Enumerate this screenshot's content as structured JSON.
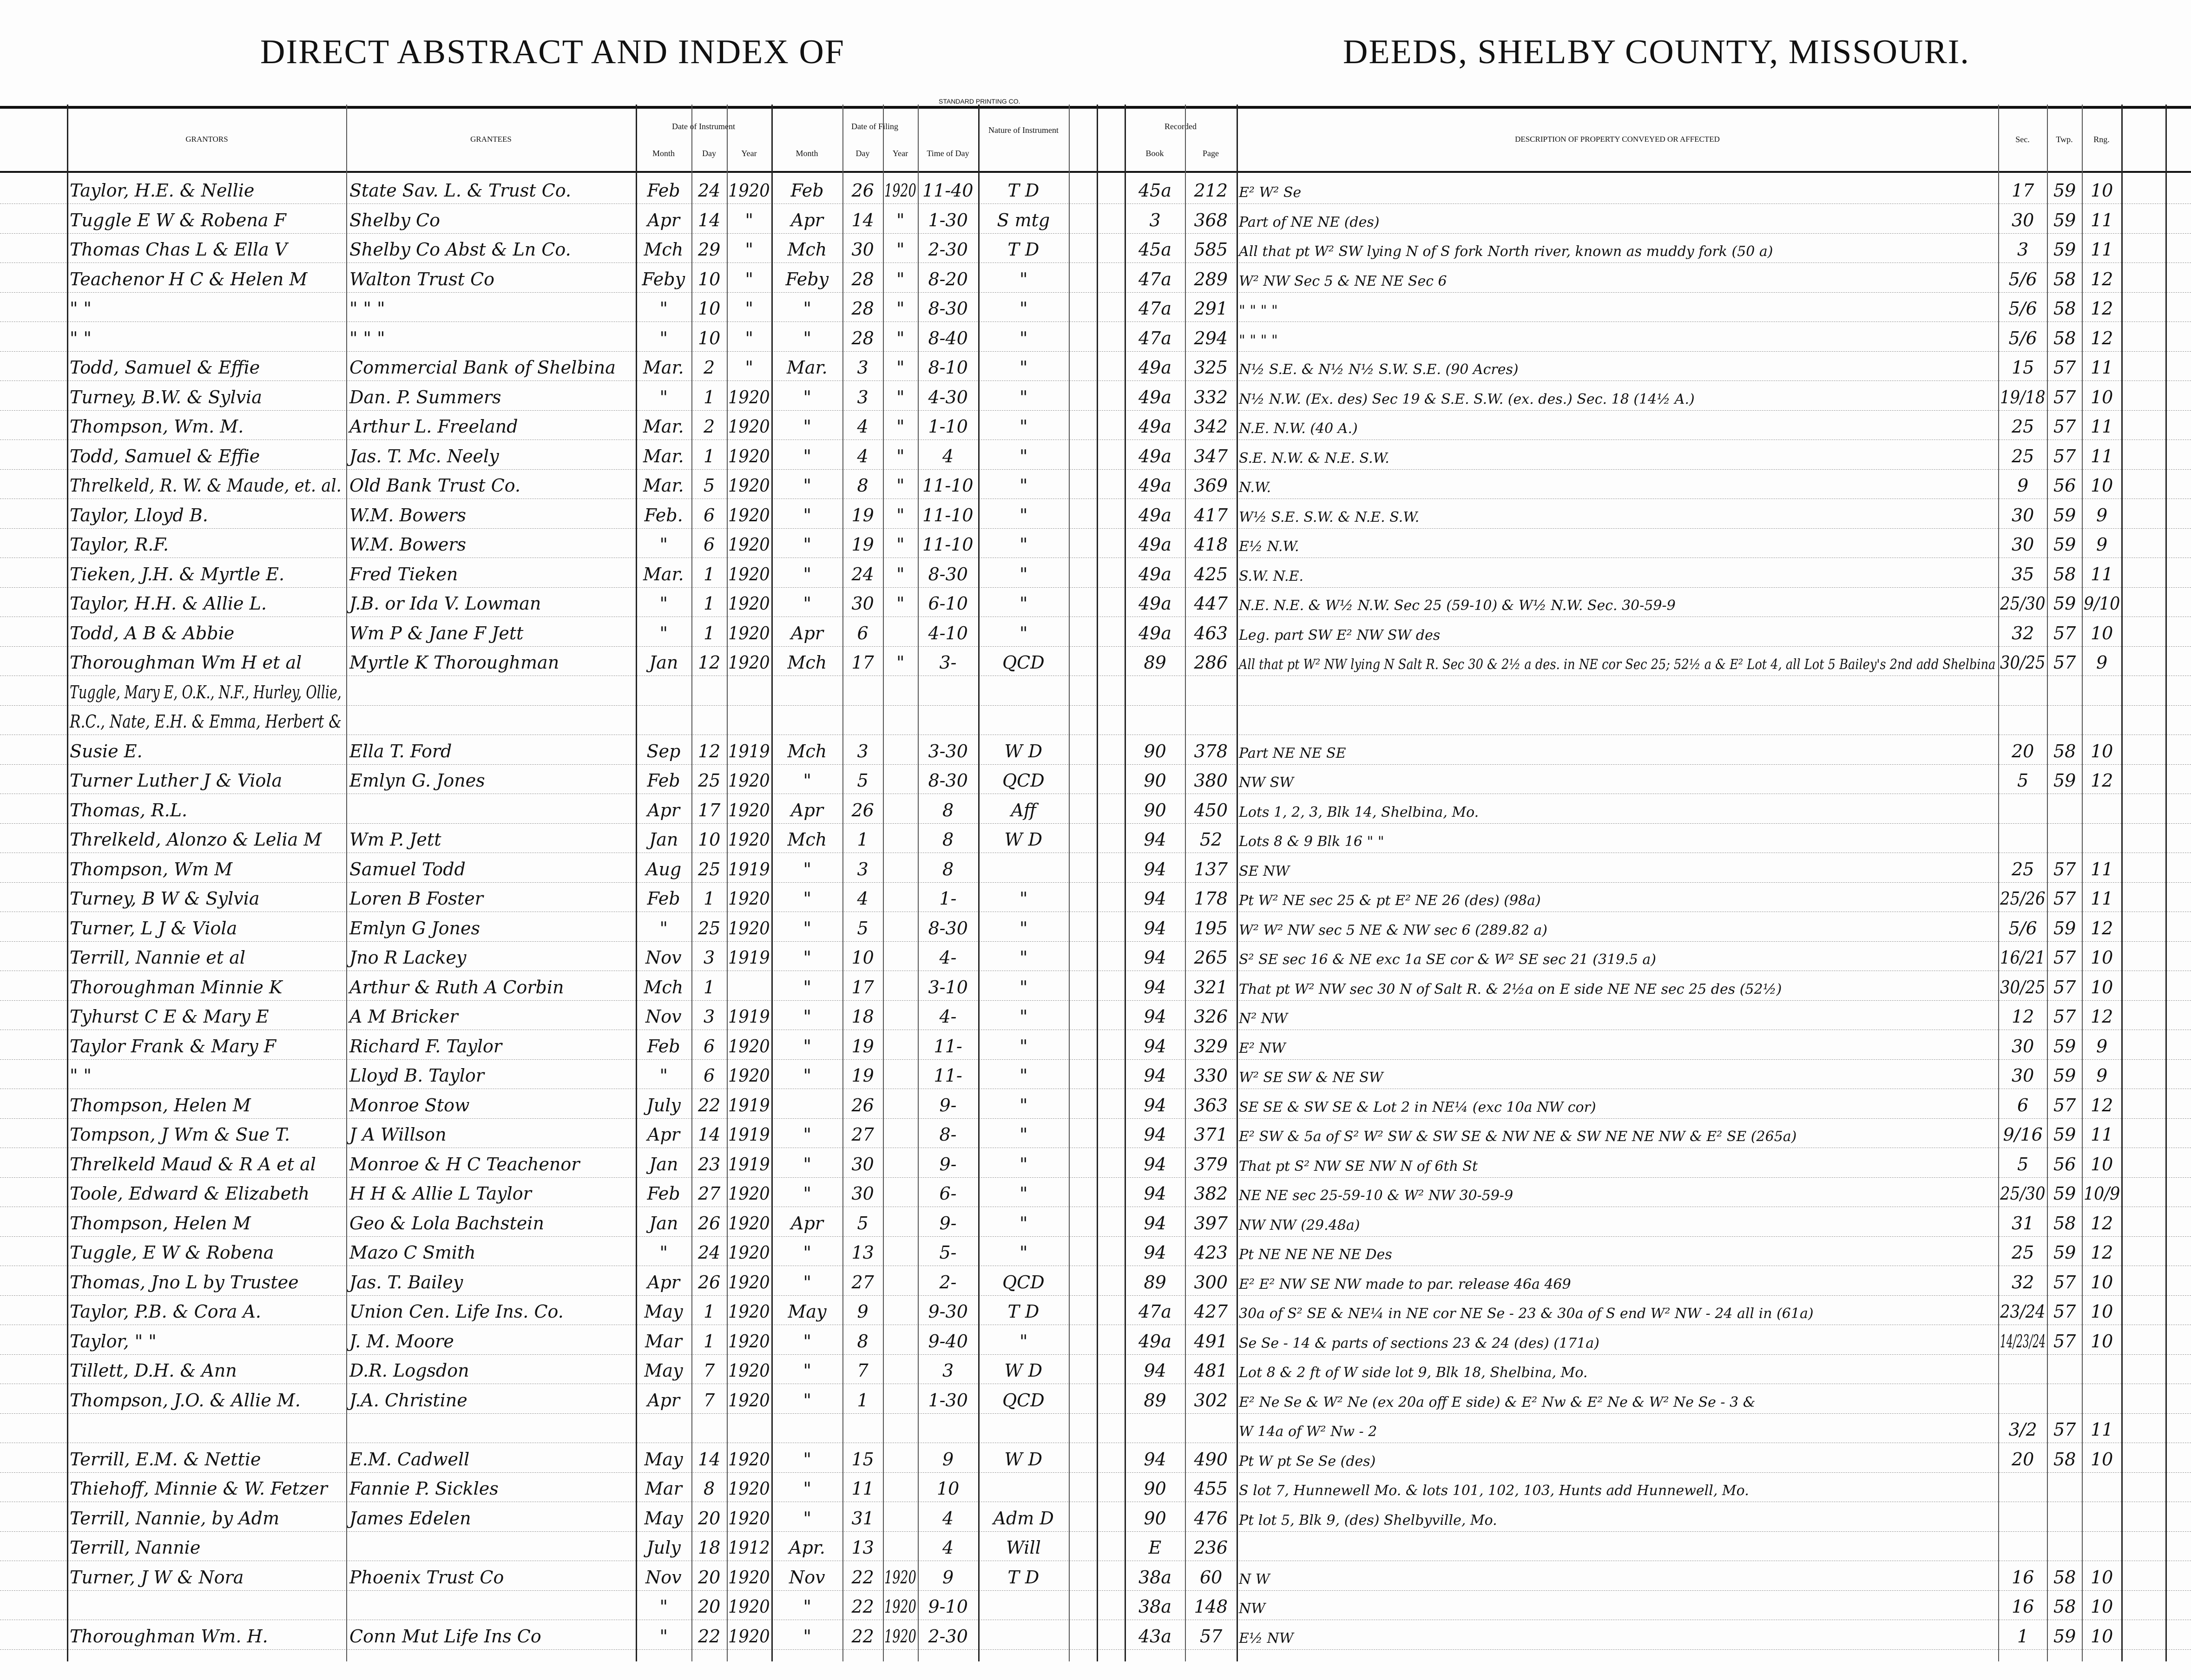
{
  "header": {
    "title_left": "DIRECT ABSTRACT AND INDEX OF",
    "title_right": "DEEDS, SHELBY COUNTY, MISSOURI.",
    "imprint": "STANDARD PRINTING CO."
  },
  "columns": {
    "grantors": "GRANTORS",
    "grantees": "GRANTEES",
    "date_instrument": "Date of Instrument",
    "date_filing": "Date of Filing",
    "month": "Month",
    "day": "Day",
    "year": "Year",
    "time_of_day": "Time of Day",
    "nature": "Nature of Instrument",
    "recorded": "Recorded",
    "book": "Book",
    "page": "Page",
    "description": "DESCRIPTION OF PROPERTY CONVEYED OR AFFECTED",
    "sec": "Sec.",
    "twp": "Twp.",
    "rng": "Rng."
  },
  "rows": [
    {
      "grantor": "Taylor, H.E. & Nellie",
      "grantee": "State Sav. L. & Trust Co.",
      "im": "Feb",
      "id": "24",
      "iy": "1920",
      "fm": "Feb",
      "fd": "26",
      "fy": "1920",
      "time": "11-40",
      "nature": "T D",
      "book": "45a",
      "page": "212",
      "desc": "E² W² Se",
      "sec": "17",
      "twp": "59",
      "rng": "10"
    },
    {
      "grantor": "Tuggle E W & Robena F",
      "grantee": "Shelby Co",
      "im": "Apr",
      "id": "14",
      "iy": "\"",
      "fm": "Apr",
      "fd": "14",
      "fy": "\"",
      "time": "1-30",
      "nature": "S mtg",
      "book": "3",
      "page": "368",
      "desc": "Part of NE NE (des)",
      "sec": "30",
      "twp": "59",
      "rng": "11"
    },
    {
      "grantor": "Thomas Chas L & Ella V",
      "grantee": "Shelby Co Abst & Ln Co.",
      "im": "Mch",
      "id": "29",
      "iy": "\"",
      "fm": "Mch",
      "fd": "30",
      "fy": "\"",
      "time": "2-30",
      "nature": "T D",
      "book": "45a",
      "page": "585",
      "desc": "All that pt W² SW lying N of S fork North river, known as muddy fork (50 a)",
      "sec": "3",
      "twp": "59",
      "rng": "11"
    },
    {
      "grantor": "Teachenor H C & Helen M",
      "grantee": "Walton Trust Co",
      "im": "Feby",
      "id": "10",
      "iy": "\"",
      "fm": "Feby",
      "fd": "28",
      "fy": "\"",
      "time": "8-20",
      "nature": "\"",
      "book": "47a",
      "page": "289",
      "desc": "W² NW Sec 5 & NE NE Sec 6",
      "sec": "5/6",
      "twp": "58",
      "rng": "12"
    },
    {
      "grantor": "\"     \"",
      "grantee": "\"   \"   \"",
      "im": "\"",
      "id": "10",
      "iy": "\"",
      "fm": "\"",
      "fd": "28",
      "fy": "\"",
      "time": "8-30",
      "nature": "\"",
      "book": "47a",
      "page": "291",
      "desc": "\"   \"   \"   \"",
      "sec": "5/6",
      "twp": "58",
      "rng": "12"
    },
    {
      "grantor": "\"     \"",
      "grantee": "\"   \"   \"",
      "im": "\"",
      "id": "10",
      "iy": "\"",
      "fm": "\"",
      "fd": "28",
      "fy": "\"",
      "time": "8-40",
      "nature": "\"",
      "book": "47a",
      "page": "294",
      "desc": "\"   \"   \"   \"",
      "sec": "5/6",
      "twp": "58",
      "rng": "12"
    },
    {
      "grantor": "Todd, Samuel & Effie",
      "grantee": "Commercial Bank of Shelbina",
      "im": "Mar.",
      "id": "2",
      "iy": "\"",
      "fm": "Mar.",
      "fd": "3",
      "fy": "\"",
      "time": "8-10",
      "nature": "\"",
      "book": "49a",
      "page": "325",
      "desc": "N½ S.E. & N½ N½ S.W. S.E.   (90 Acres)",
      "sec": "15",
      "twp": "57",
      "rng": "11"
    },
    {
      "grantor": "Turney, B.W. & Sylvia",
      "grantee": "Dan. P. Summers",
      "im": "\"",
      "id": "1",
      "iy": "1920",
      "fm": "\"",
      "fd": "3",
      "fy": "\"",
      "time": "4-30",
      "nature": "\"",
      "book": "49a",
      "page": "332",
      "desc": "N½ N.W. (Ex. des) Sec 19 & S.E. S.W. (ex. des.) Sec. 18   (14½ A.)",
      "sec": "19/18",
      "twp": "57",
      "rng": "10"
    },
    {
      "grantor": "Thompson, Wm. M.",
      "grantee": "Arthur L. Freeland",
      "im": "Mar.",
      "id": "2",
      "iy": "1920",
      "fm": "\"",
      "fd": "4",
      "fy": "\"",
      "time": "1-10",
      "nature": "\"",
      "book": "49a",
      "page": "342",
      "desc": "N.E. N.W.        (40 A.)",
      "sec": "25",
      "twp": "57",
      "rng": "11"
    },
    {
      "grantor": "Todd, Samuel & Effie",
      "grantee": "Jas. T. Mc. Neely",
      "im": "Mar.",
      "id": "1",
      "iy": "1920",
      "fm": "\"",
      "fd": "4",
      "fy": "\"",
      "time": "4",
      "nature": "\"",
      "book": "49a",
      "page": "347",
      "desc": "S.E. N.W. & N.E. S.W.",
      "sec": "25",
      "twp": "57",
      "rng": "11"
    },
    {
      "grantor": "Threlkeld, R. W. & Maude, et. al.",
      "grantee": "Old Bank Trust Co.",
      "im": "Mar.",
      "id": "5",
      "iy": "1920",
      "fm": "\"",
      "fd": "8",
      "fy": "\"",
      "time": "11-10",
      "nature": "\"",
      "book": "49a",
      "page": "369",
      "desc": "N.W.",
      "sec": "9",
      "twp": "56",
      "rng": "10"
    },
    {
      "grantor": "Taylor, Lloyd B.",
      "grantee": "W.M. Bowers",
      "im": "Feb.",
      "id": "6",
      "iy": "1920",
      "fm": "\"",
      "fd": "19",
      "fy": "\"",
      "time": "11-10",
      "nature": "\"",
      "book": "49a",
      "page": "417",
      "desc": "W½ S.E. S.W. & N.E. S.W.",
      "sec": "30",
      "twp": "59",
      "rng": "9"
    },
    {
      "grantor": "Taylor, R.F.",
      "grantee": "W.M. Bowers",
      "im": "\"",
      "id": "6",
      "iy": "1920",
      "fm": "\"",
      "fd": "19",
      "fy": "\"",
      "time": "11-10",
      "nature": "\"",
      "book": "49a",
      "page": "418",
      "desc": "E½ N.W.",
      "sec": "30",
      "twp": "59",
      "rng": "9"
    },
    {
      "grantor": "Tieken, J.H. & Myrtle E.",
      "grantee": "Fred Tieken",
      "im": "Mar.",
      "id": "1",
      "iy": "1920",
      "fm": "\"",
      "fd": "24",
      "fy": "\"",
      "time": "8-30",
      "nature": "\"",
      "book": "49a",
      "page": "425",
      "desc": "S.W. N.E.",
      "sec": "35",
      "twp": "58",
      "rng": "11"
    },
    {
      "grantor": "Taylor, H.H. & Allie L.",
      "grantee": "J.B. or Ida V. Lowman",
      "im": "\"",
      "id": "1",
      "iy": "1920",
      "fm": "\"",
      "fd": "30",
      "fy": "\"",
      "time": "6-10",
      "nature": "\"",
      "book": "49a",
      "page": "447",
      "desc": "N.E. N.E. & W½ N.W. Sec 25 (59-10) & W½ N.W. Sec. 30-59-9",
      "sec": "25/30",
      "twp": "59",
      "rng": "9/10"
    },
    {
      "grantor": "Todd, A B & Abbie",
      "grantee": "Wm P & Jane F Jett",
      "im": "\"",
      "id": "1",
      "iy": "1920",
      "fm": "Apr",
      "fd": "6",
      "fy": "",
      "time": "4-10",
      "nature": "\"",
      "book": "49a",
      "page": "463",
      "desc": "Leg. part SW E² NW SW des",
      "sec": "32",
      "twp": "57",
      "rng": "10"
    },
    {
      "grantor": "Thoroughman Wm H et al",
      "grantee": "Myrtle K Thoroughman",
      "im": "Jan",
      "id": "12",
      "iy": "1920",
      "fm": "Mch",
      "fd": "17",
      "fy": "\"",
      "time": "3-",
      "nature": "QCD",
      "book": "89",
      "page": "286",
      "desc": "All that pt W² NW lying N Salt R. Sec 30 & 2½ a des. in NE cor Sec 25; 52½ a & E² Lot 4, all Lot 5 Bailey's 2nd add Shelbina",
      "sec": "30/25",
      "twp": "57",
      "rng": "9"
    },
    {
      "grantor": "Tuggle, Mary E, O.K., N.F., Hurley, Ollie,",
      "grantee": "",
      "im": "",
      "id": "",
      "iy": "",
      "fm": "",
      "fd": "",
      "fy": "",
      "time": "",
      "nature": "",
      "book": "",
      "page": "",
      "desc": "",
      "sec": "",
      "twp": "",
      "rng": ""
    },
    {
      "grantor": "R.C., Nate, E.H. & Emma, Herbert &",
      "grantee": "",
      "im": "",
      "id": "",
      "iy": "",
      "fm": "",
      "fd": "",
      "fy": "",
      "time": "",
      "nature": "",
      "book": "",
      "page": "",
      "desc": "",
      "sec": "",
      "twp": "",
      "rng": ""
    },
    {
      "grantor": "Susie E.",
      "grantee": "Ella T. Ford",
      "im": "Sep",
      "id": "12",
      "iy": "1919",
      "fm": "Mch",
      "fd": "3",
      "fy": "",
      "time": "3-30",
      "nature": "W D",
      "book": "90",
      "page": "378",
      "desc": "Part NE NE SE",
      "sec": "20",
      "twp": "58",
      "rng": "10"
    },
    {
      "grantor": "Turner Luther J & Viola",
      "grantee": "Emlyn G. Jones",
      "im": "Feb",
      "id": "25",
      "iy": "1920",
      "fm": "\"",
      "fd": "5",
      "fy": "",
      "time": "8-30",
      "nature": "QCD",
      "book": "90",
      "page": "380",
      "desc": "NW SW",
      "sec": "5",
      "twp": "59",
      "rng": "12"
    },
    {
      "grantor": "Thomas, R.L.",
      "grantee": "",
      "im": "Apr",
      "id": "17",
      "iy": "1920",
      "fm": "Apr",
      "fd": "26",
      "fy": "",
      "time": "8",
      "nature": "Aff",
      "book": "90",
      "page": "450",
      "desc": "Lots 1, 2, 3, Blk 14, Shelbina, Mo.",
      "sec": "",
      "twp": "",
      "rng": ""
    },
    {
      "grantor": "Threlkeld, Alonzo & Lelia M",
      "grantee": "Wm P. Jett",
      "im": "Jan",
      "id": "10",
      "iy": "1920",
      "fm": "Mch",
      "fd": "1",
      "fy": "",
      "time": "8",
      "nature": "W D",
      "book": "94",
      "page": "52",
      "desc": "Lots 8 & 9 Blk 16   \"   \"",
      "sec": "",
      "twp": "",
      "rng": ""
    },
    {
      "grantor": "Thompson, Wm M",
      "grantee": "Samuel Todd",
      "im": "Aug",
      "id": "25",
      "iy": "1919",
      "fm": "\"",
      "fd": "3",
      "fy": "",
      "time": "8",
      "nature": "",
      "book": "94",
      "page": "137",
      "desc": "SE NW",
      "sec": "25",
      "twp": "57",
      "rng": "11"
    },
    {
      "grantor": "Turney, B W & Sylvia",
      "grantee": "Loren B Foster",
      "im": "Feb",
      "id": "1",
      "iy": "1920",
      "fm": "\"",
      "fd": "4",
      "fy": "",
      "time": "1-",
      "nature": "\"",
      "book": "94",
      "page": "178",
      "desc": "Pt W² NE sec 25 & pt E² NE 26 (des)       (98a)",
      "sec": "25/26",
      "twp": "57",
      "rng": "11"
    },
    {
      "grantor": "Turner, L J & Viola",
      "grantee": "Emlyn G Jones",
      "im": "\"",
      "id": "25",
      "iy": "1920",
      "fm": "\"",
      "fd": "5",
      "fy": "",
      "time": "8-30",
      "nature": "\"",
      "book": "94",
      "page": "195",
      "desc": "W² W² NW sec 5 NE & NW sec 6      (289.82 a)",
      "sec": "5/6",
      "twp": "59",
      "rng": "12"
    },
    {
      "grantor": "Terrill, Nannie et al",
      "grantee": "Jno R Lackey",
      "im": "Nov",
      "id": "3",
      "iy": "1919",
      "fm": "\"",
      "fd": "10",
      "fy": "",
      "time": "4-",
      "nature": "\"",
      "book": "94",
      "page": "265",
      "desc": "S² SE sec 16 & NE exc 1a SE cor & W² SE sec 21   (319.5 a)",
      "sec": "16/21",
      "twp": "57",
      "rng": "10"
    },
    {
      "grantor": "Thoroughman Minnie K",
      "grantee": "Arthur & Ruth A Corbin",
      "im": "Mch",
      "id": "1",
      "iy": "",
      "fm": "\"",
      "fd": "17",
      "fy": "",
      "time": "3-10",
      "nature": "\"",
      "book": "94",
      "page": "321",
      "desc": "That pt W² NW sec 30 N of Salt R. & 2½a on E side NE NE sec 25 des  (52½)",
      "sec": "30/25",
      "twp": "57",
      "rng": "10"
    },
    {
      "grantor": "Tyhurst C E & Mary E",
      "grantee": "A M Bricker",
      "im": "Nov",
      "id": "3",
      "iy": "1919",
      "fm": "\"",
      "fd": "18",
      "fy": "",
      "time": "4-",
      "nature": "\"",
      "book": "94",
      "page": "326",
      "desc": "N² NW",
      "sec": "12",
      "twp": "57",
      "rng": "12"
    },
    {
      "grantor": "Taylor Frank & Mary F",
      "grantee": "Richard F. Taylor",
      "im": "Feb",
      "id": "6",
      "iy": "1920",
      "fm": "\"",
      "fd": "19",
      "fy": "",
      "time": "11-",
      "nature": "\"",
      "book": "94",
      "page": "329",
      "desc": "E² NW",
      "sec": "30",
      "twp": "59",
      "rng": "9"
    },
    {
      "grantor": "\"      \"",
      "grantee": "Lloyd B. Taylor",
      "im": "\"",
      "id": "6",
      "iy": "1920",
      "fm": "\"",
      "fd": "19",
      "fy": "",
      "time": "11-",
      "nature": "\"",
      "book": "94",
      "page": "330",
      "desc": "W² SE SW & NE SW",
      "sec": "30",
      "twp": "59",
      "rng": "9"
    },
    {
      "grantor": "Thompson, Helen M",
      "grantee": "Monroe Stow",
      "im": "July",
      "id": "22",
      "iy": "1919",
      "fm": "",
      "fd": "26",
      "fy": "",
      "time": "9-",
      "nature": "\"",
      "book": "94",
      "page": "363",
      "desc": "SE SE & SW SE & Lot 2 in NE¼ (exc 10a NW cor)",
      "sec": "6",
      "twp": "57",
      "rng": "12"
    },
    {
      "grantor": "Tompson, J Wm & Sue T.",
      "grantee": "J A Willson",
      "im": "Apr",
      "id": "14",
      "iy": "1919",
      "fm": "\"",
      "fd": "27",
      "fy": "",
      "time": "8-",
      "nature": "\"",
      "book": "94",
      "page": "371",
      "desc": "E² SW & 5a of S² W² SW & SW SE & NW NE & SW NE NE NW & E² SE (265a)",
      "sec": "9/16",
      "twp": "59",
      "rng": "11"
    },
    {
      "grantor": "Threlkeld Maud & R A et al",
      "grantee": "Monroe & H C Teachenor",
      "im": "Jan",
      "id": "23",
      "iy": "1919",
      "fm": "\"",
      "fd": "30",
      "fy": "",
      "time": "9-",
      "nature": "\"",
      "book": "94",
      "page": "379",
      "desc": "That pt S² NW SE NW N of 6th St",
      "sec": "5",
      "twp": "56",
      "rng": "10"
    },
    {
      "grantor": "Toole, Edward & Elizabeth",
      "grantee": "H H & Allie L Taylor",
      "im": "Feb",
      "id": "27",
      "iy": "1920",
      "fm": "\"",
      "fd": "30",
      "fy": "",
      "time": "6-",
      "nature": "\"",
      "book": "94",
      "page": "382",
      "desc": "NE NE sec 25-59-10 & W² NW 30-59-9",
      "sec": "25/30",
      "twp": "59",
      "rng": "10/9"
    },
    {
      "grantor": "Thompson, Helen M",
      "grantee": "Geo & Lola Bachstein",
      "im": "Jan",
      "id": "26",
      "iy": "1920",
      "fm": "Apr",
      "fd": "5",
      "fy": "",
      "time": "9-",
      "nature": "\"",
      "book": "94",
      "page": "397",
      "desc": "NW NW        (29.48a)",
      "sec": "31",
      "twp": "58",
      "rng": "12"
    },
    {
      "grantor": "Tuggle, E W & Robena",
      "grantee": "Mazo C Smith",
      "im": "\"",
      "id": "24",
      "iy": "1920",
      "fm": "\"",
      "fd": "13",
      "fy": "",
      "time": "5-",
      "nature": "\"",
      "book": "94",
      "page": "423",
      "desc": "Pt NE NE NE NE Des",
      "sec": "25",
      "twp": "59",
      "rng": "12"
    },
    {
      "grantor": "Thomas, Jno L by Trustee",
      "grantee": "Jas. T. Bailey",
      "im": "Apr",
      "id": "26",
      "iy": "1920",
      "fm": "\"",
      "fd": "27",
      "fy": "",
      "time": "2-",
      "nature": "QCD",
      "book": "89",
      "page": "300",
      "desc": "E² E² NW SE NW     made to par. release 46a 469",
      "sec": "32",
      "twp": "57",
      "rng": "10"
    },
    {
      "grantor": "Taylor, P.B. & Cora A.",
      "grantee": "Union Cen. Life Ins. Co.",
      "im": "May",
      "id": "1",
      "iy": "1920",
      "fm": "May",
      "fd": "9",
      "fy": "",
      "time": "9-30",
      "nature": "T D",
      "book": "47a",
      "page": "427",
      "desc": "30a of S² SE & NE¼ in NE cor NE Se - 23 & 30a of S end W² NW - 24 all in (61a)",
      "sec": "23/24",
      "twp": "57",
      "rng": "10"
    },
    {
      "grantor": "Taylor, \"   \"",
      "grantee": "J. M. Moore",
      "im": "Mar",
      "id": "1",
      "iy": "1920",
      "fm": "\"",
      "fd": "8",
      "fy": "",
      "time": "9-40",
      "nature": "\"",
      "book": "49a",
      "page": "491",
      "desc": "Se Se - 14 & parts of sections 23 & 24 (des)   (171a)",
      "sec": "14/23/24",
      "twp": "57",
      "rng": "10"
    },
    {
      "grantor": "Tillett, D.H. & Ann",
      "grantee": "D.R. Logsdon",
      "im": "May",
      "id": "7",
      "iy": "1920",
      "fm": "\"",
      "fd": "7",
      "fy": "",
      "time": "3",
      "nature": "W D",
      "book": "94",
      "page": "481",
      "desc": "Lot 8 & 2 ft of W side lot 9, Blk 18, Shelbina, Mo.",
      "sec": "",
      "twp": "",
      "rng": ""
    },
    {
      "grantor": "Thompson, J.O. & Allie M.",
      "grantee": "J.A. Christine",
      "im": "Apr",
      "id": "7",
      "iy": "1920",
      "fm": "\"",
      "fd": "1",
      "fy": "",
      "time": "1-30",
      "nature": "QCD",
      "book": "89",
      "page": "302",
      "desc": "E² Ne Se & W² Ne (ex 20a off E side) & E² Nw & E² Ne & W² Ne Se - 3 &",
      "sec": "",
      "twp": "",
      "rng": ""
    },
    {
      "grantor": "",
      "grantee": "",
      "im": "",
      "id": "",
      "iy": "",
      "fm": "",
      "fd": "",
      "fy": "",
      "time": "",
      "nature": "",
      "book": "",
      "page": "",
      "desc": "W 14a of W² Nw - 2",
      "sec": "3/2",
      "twp": "57",
      "rng": "11"
    },
    {
      "grantor": "Terrill, E.M. & Nettie",
      "grantee": "E.M. Cadwell",
      "im": "May",
      "id": "14",
      "iy": "1920",
      "fm": "\"",
      "fd": "15",
      "fy": "",
      "time": "9",
      "nature": "W D",
      "book": "94",
      "page": "490",
      "desc": "Pt W pt Se Se (des)",
      "sec": "20",
      "twp": "58",
      "rng": "10"
    },
    {
      "grantor": "Thiehoff, Minnie & W. Fetzer",
      "grantee": "Fannie P. Sickles",
      "im": "Mar",
      "id": "8",
      "iy": "1920",
      "fm": "\"",
      "fd": "11",
      "fy": "",
      "time": "10",
      "nature": "",
      "book": "90",
      "page": "455",
      "desc": "S lot 7, Hunnewell Mo. & lots 101, 102, 103, Hunts add Hunnewell, Mo.",
      "sec": "",
      "twp": "",
      "rng": ""
    },
    {
      "grantor": "Terrill, Nannie, by Adm",
      "grantee": "James Edelen",
      "im": "May",
      "id": "20",
      "iy": "1920",
      "fm": "\"",
      "fd": "31",
      "fy": "",
      "time": "4",
      "nature": "Adm D",
      "book": "90",
      "page": "476",
      "desc": "Pt lot 5, Blk 9, (des) Shelbyville, Mo.",
      "sec": "",
      "twp": "",
      "rng": ""
    },
    {
      "grantor": "Terrill, Nannie",
      "grantee": "",
      "im": "July",
      "id": "18",
      "iy": "1912",
      "fm": "Apr.",
      "fd": "13",
      "fy": "",
      "time": "4",
      "nature": "Will",
      "book": "E",
      "page": "236",
      "desc": "",
      "sec": "",
      "twp": "",
      "rng": ""
    },
    {
      "grantor": "Turner, J W & Nora",
      "grantee": "Phoenix Trust Co",
      "im": "Nov",
      "id": "20",
      "iy": "1920",
      "fm": "Nov",
      "fd": "22",
      "fy": "1920",
      "time": "9",
      "nature": "T D",
      "book": "38a",
      "page": "60",
      "desc": "N W",
      "sec": "16",
      "twp": "58",
      "rng": "10"
    },
    {
      "grantor": "",
      "grantee": "",
      "im": "\"",
      "id": "20",
      "iy": "1920",
      "fm": "\"",
      "fd": "22",
      "fy": "1920",
      "time": "9-10",
      "nature": "",
      "book": "38a",
      "page": "148",
      "desc": "NW",
      "sec": "16",
      "twp": "58",
      "rng": "10"
    },
    {
      "grantor": "Thoroughman Wm. H.",
      "grantee": "Conn Mut Life Ins Co",
      "im": "\"",
      "id": "22",
      "iy": "1920",
      "fm": "\"",
      "fd": "22",
      "fy": "1920",
      "time": "2-30",
      "nature": "",
      "book": "43a",
      "page": "57",
      "desc": "E½ NW",
      "sec": "1",
      "twp": "59",
      "rng": "10"
    }
  ]
}
